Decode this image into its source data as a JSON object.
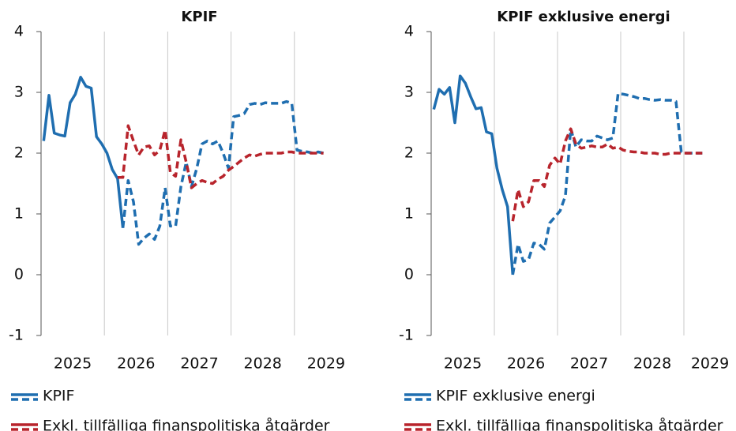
{
  "chart_data": [
    {
      "type": "line",
      "title": "KPIF",
      "categories": [
        null,
        null,
        null,
        null,
        null,
        null,
        "2025",
        null,
        null,
        null,
        null,
        null,
        null,
        null,
        null,
        null,
        null,
        null,
        "2026",
        null,
        null,
        null,
        null,
        null,
        null,
        null,
        null,
        null,
        null,
        null,
        "2027",
        null,
        null,
        null,
        null,
        null,
        null,
        null,
        null,
        null,
        null,
        null,
        "2028",
        null,
        null,
        null,
        null,
        null,
        null,
        null,
        null,
        null,
        null,
        null,
        "2029",
        null,
        null,
        null,
        null,
        null
      ],
      "ylim": [
        -1,
        4
      ],
      "yticks": [
        -1,
        0,
        1,
        2,
        3,
        4
      ],
      "grid": true,
      "series": [
        {
          "name": "KPIF",
          "color": "#1f6eb0",
          "dash_from": 15,
          "values": [
            2.2,
            2.95,
            2.33,
            2.3,
            2.28,
            2.83,
            2.97,
            3.25,
            3.1,
            3.07,
            2.27,
            2.15,
            2.0,
            1.73,
            1.58,
            0.77,
            1.55,
            1.2,
            0.5,
            0.6,
            0.67,
            0.58,
            0.8,
            1.43,
            0.8,
            0.8,
            1.45,
            1.85,
            1.45,
            1.75,
            2.15,
            2.2,
            2.15,
            2.2,
            2.0,
            1.75,
            2.6,
            2.62,
            2.65,
            2.8,
            2.82,
            2.8,
            2.83,
            2.82,
            2.82,
            2.82,
            2.85,
            2.82,
            2.05,
            2.03,
            2.02,
            2.0,
            2.02,
            2.0,
            null,
            null,
            null,
            null,
            null,
            null
          ]
        },
        {
          "name": "Exkl. tillfälliga finanspolitiska åtgärder",
          "color": "#b8242c",
          "dash_from": 14,
          "values": [
            null,
            null,
            null,
            null,
            null,
            null,
            null,
            null,
            null,
            null,
            null,
            null,
            null,
            null,
            1.6,
            1.6,
            2.45,
            2.2,
            1.97,
            2.1,
            2.12,
            1.97,
            2.05,
            2.38,
            1.68,
            1.62,
            2.22,
            1.85,
            1.43,
            1.5,
            1.55,
            1.52,
            1.5,
            1.57,
            1.62,
            1.72,
            1.78,
            1.85,
            1.92,
            1.97,
            1.95,
            1.98,
            2.0,
            2.0,
            2.0,
            2.0,
            2.02,
            2.02,
            2.0,
            2.0,
            2.0,
            2.0,
            2.0,
            2.0,
            null,
            null,
            null,
            null,
            null,
            null
          ]
        }
      ]
    },
    {
      "type": "line",
      "title": "KPIF exklusive energi",
      "categories": [
        null,
        null,
        null,
        null,
        null,
        null,
        "2025",
        null,
        null,
        null,
        null,
        null,
        null,
        null,
        null,
        null,
        null,
        null,
        "2026",
        null,
        null,
        null,
        null,
        null,
        null,
        null,
        null,
        null,
        null,
        null,
        "2027",
        null,
        null,
        null,
        null,
        null,
        null,
        null,
        null,
        null,
        null,
        null,
        "2028",
        null,
        null,
        null,
        null,
        null,
        null,
        null,
        null,
        null,
        null,
        null,
        "2029",
        null,
        null,
        null,
        null,
        null
      ],
      "ylim": [
        -1,
        4
      ],
      "yticks": [
        -1,
        0,
        1,
        2,
        3,
        4
      ],
      "grid": true,
      "series": [
        {
          "name": "KPIF exklusive energi",
          "color": "#1f6eb0",
          "dash_from": 15,
          "values": [
            2.72,
            3.05,
            2.97,
            3.08,
            2.5,
            3.27,
            3.15,
            2.93,
            2.73,
            2.75,
            2.35,
            2.32,
            1.75,
            1.4,
            1.12,
            0.0,
            0.5,
            0.22,
            0.25,
            0.52,
            0.5,
            0.42,
            0.85,
            0.95,
            1.05,
            1.3,
            2.4,
            2.1,
            2.22,
            2.2,
            2.2,
            2.28,
            2.25,
            2.22,
            2.25,
            2.98,
            2.97,
            2.95,
            2.93,
            2.9,
            2.9,
            2.88,
            2.87,
            2.88,
            2.87,
            2.87,
            2.85,
            2.02,
            2.0,
            2.0,
            2.0,
            2.0,
            null,
            null,
            null,
            null,
            null,
            null,
            null,
            null
          ]
        },
        {
          "name": "Exkl. tillfälliga finanspolitiska åtgärder",
          "color": "#b8242c",
          "dash_from": 15,
          "values": [
            null,
            null,
            null,
            null,
            null,
            null,
            null,
            null,
            null,
            null,
            null,
            null,
            null,
            null,
            null,
            0.88,
            1.4,
            1.12,
            1.2,
            1.55,
            1.55,
            1.45,
            1.8,
            1.92,
            1.82,
            2.2,
            2.4,
            2.15,
            2.08,
            2.1,
            2.12,
            2.1,
            2.1,
            2.15,
            2.08,
            2.1,
            2.05,
            2.03,
            2.02,
            2.02,
            2.0,
            2.0,
            2.0,
            1.98,
            1.98,
            2.0,
            2.0,
            2.0,
            2.0,
            2.0,
            2.0,
            2.0,
            null,
            null,
            null,
            null,
            null,
            null,
            null,
            null
          ]
        }
      ]
    }
  ]
}
